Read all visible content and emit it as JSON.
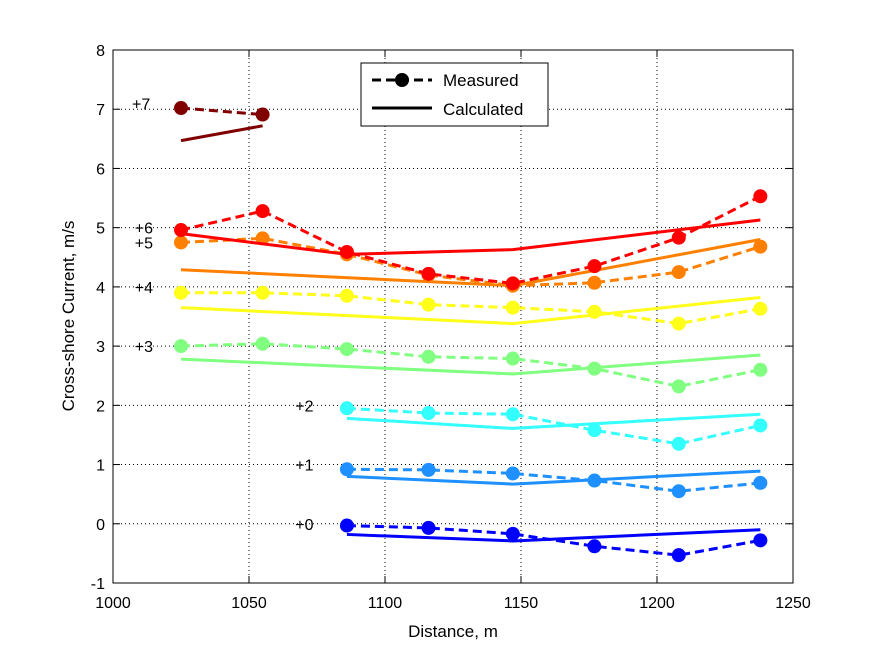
{
  "chart_data": {
    "type": "line",
    "title": "",
    "xlabel": "Distance, m",
    "ylabel": "Cross-shore Current, m/s",
    "xlim": [
      1000,
      1250
    ],
    "ylim": [
      -1,
      8
    ],
    "xticks": [
      1000,
      1050,
      1100,
      1150,
      1200,
      1250
    ],
    "yticks": [
      -1,
      0,
      1,
      2,
      3,
      4,
      5,
      6,
      7,
      8
    ],
    "grid": true,
    "legend": {
      "position": "top-center",
      "entries": [
        {
          "label": "Measured",
          "style": "dashed-marker"
        },
        {
          "label": "Calculated",
          "style": "solid"
        }
      ]
    },
    "series": [
      {
        "label": "+0",
        "label_pos": [
          1007,
          0
        ],
        "color": "#0000ff",
        "measured": {
          "x": [
            1086,
            1116,
            1147,
            1177,
            1208,
            1238
          ],
          "y": [
            -0.03,
            -0.07,
            -0.17,
            -0.38,
            -0.53,
            -0.28
          ]
        },
        "calculated": {
          "x": [
            1086,
            1147,
            1238
          ],
          "y": [
            -0.18,
            -0.29,
            -0.1
          ]
        }
      },
      {
        "label": "+1",
        "label_pos": [
          1007,
          1
        ],
        "color": "#1e90ff",
        "measured": {
          "x": [
            1086,
            1116,
            1147,
            1177,
            1208,
            1238
          ],
          "y": [
            0.92,
            0.91,
            0.85,
            0.73,
            0.55,
            0.69
          ]
        },
        "calculated": {
          "x": [
            1086,
            1147,
            1238
          ],
          "y": [
            0.8,
            0.67,
            0.89
          ]
        }
      },
      {
        "label": "+2",
        "label_pos": [
          1007,
          2
        ],
        "color": "#33ffff",
        "measured": {
          "x": [
            1086,
            1116,
            1147,
            1177,
            1208,
            1238
          ],
          "y": [
            1.95,
            1.87,
            1.85,
            1.58,
            1.35,
            1.66
          ]
        },
        "calculated": {
          "x": [
            1086,
            1147,
            1238
          ],
          "y": [
            1.78,
            1.61,
            1.85
          ]
        }
      },
      {
        "label": "+3",
        "label_pos": [
          1008,
          3
        ],
        "color": "#80ff80",
        "measured": {
          "x": [
            1025,
            1055,
            1086,
            1116,
            1147,
            1177,
            1208,
            1238
          ],
          "y": [
            3.0,
            3.04,
            2.95,
            2.82,
            2.79,
            2.62,
            2.32,
            2.6
          ]
        },
        "calculated": {
          "x": [
            1025,
            1147,
            1238
          ],
          "y": [
            2.78,
            2.53,
            2.85
          ]
        }
      },
      {
        "label": "+4",
        "label_pos": [
          1008,
          4
        ],
        "color": "#ffff1a",
        "measured": {
          "x": [
            1025,
            1055,
            1086,
            1116,
            1147,
            1177,
            1208,
            1238
          ],
          "y": [
            3.9,
            3.9,
            3.85,
            3.7,
            3.65,
            3.58,
            3.38,
            3.63
          ]
        },
        "calculated": {
          "x": [
            1025,
            1147,
            1238
          ],
          "y": [
            3.65,
            3.38,
            3.82
          ]
        }
      },
      {
        "label": "+5",
        "label_pos": [
          1008,
          4.75
        ],
        "color": "#ff8000",
        "measured": {
          "x": [
            1025,
            1055,
            1086,
            1116,
            1147,
            1177,
            1208,
            1238
          ],
          "y": [
            4.75,
            4.82,
            4.55,
            4.2,
            4.02,
            4.07,
            4.25,
            4.68
          ]
        },
        "calculated": {
          "x": [
            1025,
            1147,
            1238
          ],
          "y": [
            4.29,
            4.02,
            4.8
          ]
        }
      },
      {
        "label": "+6",
        "label_pos": [
          1008,
          5.0
        ],
        "color": "#ff0000",
        "measured": {
          "x": [
            1025,
            1055,
            1086,
            1116,
            1147,
            1177,
            1208,
            1238
          ],
          "y": [
            4.96,
            5.28,
            4.59,
            4.22,
            4.06,
            4.35,
            4.83,
            5.53
          ]
        },
        "calculated": {
          "x": [
            1025,
            1086,
            1147,
            1238
          ],
          "y": [
            4.9,
            4.55,
            4.63,
            5.13
          ]
        }
      },
      {
        "label": "+7",
        "label_pos": [
          1007,
          7.1
        ],
        "color": "#800000",
        "measured": {
          "x": [
            1025,
            1055
          ],
          "y": [
            7.02,
            6.91
          ]
        },
        "calculated": {
          "x": [
            1025,
            1055
          ],
          "y": [
            6.47,
            6.72
          ]
        }
      }
    ]
  }
}
